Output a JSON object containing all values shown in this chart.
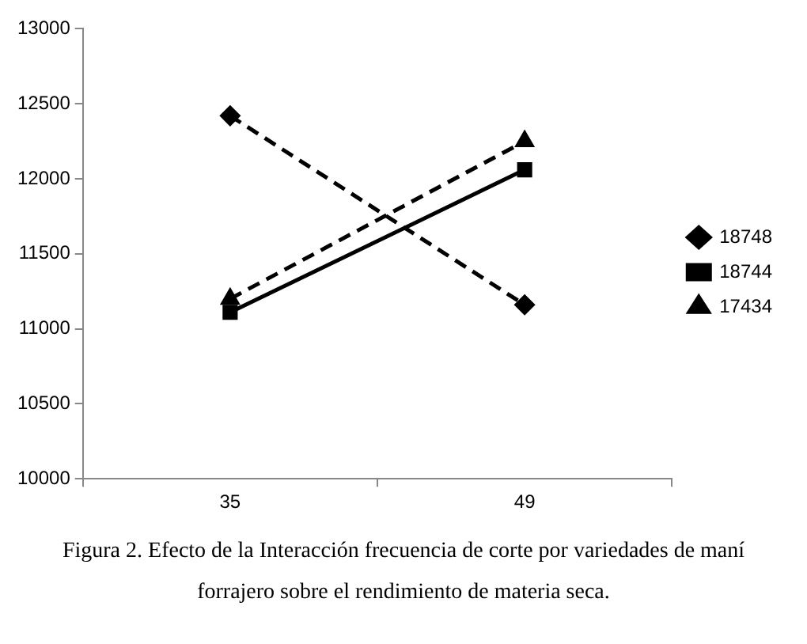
{
  "chart_data": {
    "type": "line",
    "categories": [
      "35",
      "49"
    ],
    "series": [
      {
        "name": "18748",
        "color": "#000000",
        "values": [
          12420,
          11160
        ],
        "marker": "diamond",
        "line_style": "dashed"
      },
      {
        "name": "18744",
        "color": "#000000",
        "values": [
          11110,
          12060
        ],
        "marker": "square",
        "line_style": "solid"
      },
      {
        "name": "17434",
        "color": "#000000",
        "values": [
          11200,
          12250
        ],
        "marker": "triangle",
        "line_style": "dashed"
      }
    ],
    "ylim": [
      10000,
      13000
    ],
    "yticks": [
      10000,
      10500,
      11000,
      11500,
      12000,
      12500,
      13000
    ],
    "grid": false,
    "legend": "right",
    "annotations": [
      "Figura 2. Efecto de la Interacción frecuencia de corte por variedades de maní forrajero sobre el rendimiento de materia seca."
    ]
  }
}
